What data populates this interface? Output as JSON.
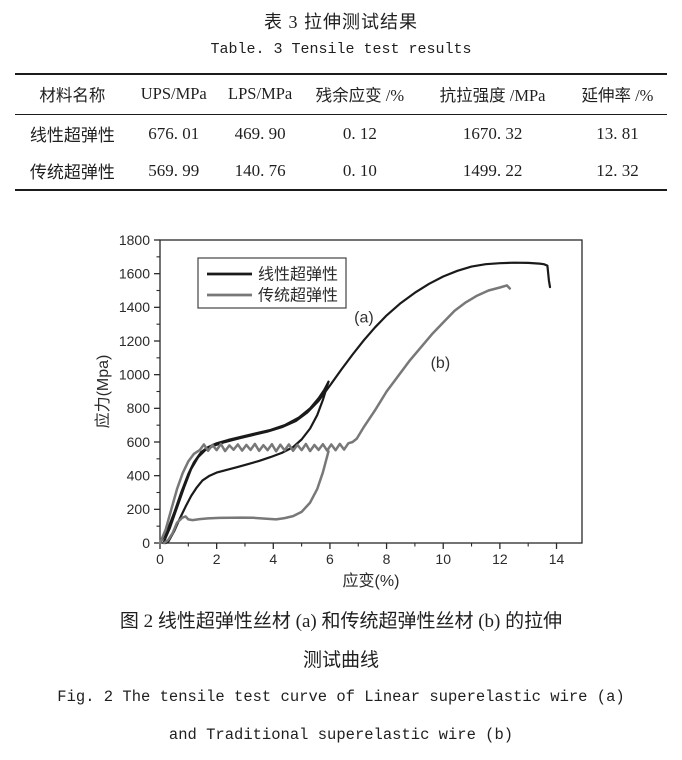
{
  "table_section": {
    "title_zh": "表 3  拉伸测试结果",
    "title_en": "Table. 3  Tensile test results",
    "headers": [
      "材料名称",
      "UPS/MPa",
      "LPS/MPa",
      "残余应变 /%",
      "抗拉强度 /MPa",
      "延伸率 /%"
    ],
    "rows": [
      [
        "线性超弹性",
        "676. 01",
        "469. 90",
        "0. 12",
        "1670. 32",
        "13. 81"
      ],
      [
        "传统超弹性",
        "569. 99",
        "140. 76",
        "0. 10",
        "1499. 22",
        "12. 32"
      ]
    ]
  },
  "figure": {
    "caption_zh_line1": "图 2  线性超弹性丝材 (a) 和传统超弹性丝材 (b) 的拉伸",
    "caption_zh_line2": "测试曲线",
    "caption_en_line1": "Fig. 2  The tensile test curve of Linear superelastic wire (a)",
    "caption_en_line2": "and Traditional superelastic wire (b)"
  },
  "chart_data": {
    "type": "line",
    "title": "",
    "xlabel": "应变(%)",
    "ylabel": "应力(Mpa)",
    "xlim": [
      0,
      14.9
    ],
    "ylim": [
      0,
      1800
    ],
    "xticks": [
      0,
      2,
      4,
      6,
      8,
      10,
      12,
      14
    ],
    "xminor_step": 1,
    "yticks": [
      0,
      200,
      400,
      600,
      800,
      1000,
      1200,
      1400,
      1600,
      1800
    ],
    "yminor_step": 100,
    "grid": false,
    "frame_color": "#2a2a2a",
    "legend": {
      "position": "upper-left-inside",
      "entries": [
        {
          "label": "线性超弹性",
          "color": "#1a1a1a"
        },
        {
          "label": "传统超弹性",
          "color": "#787878"
        }
      ]
    },
    "annotations": [
      {
        "text": "(a)",
        "x": 7.2,
        "y": 1310
      },
      {
        "text": "(b)",
        "x": 9.9,
        "y": 1040
      }
    ],
    "series": [
      {
        "id": "linear-load-cycle",
        "name": "线性超弹性 loading 0-6%",
        "color": "#1a1a1a",
        "width": 2.2,
        "points": [
          [
            0,
            0
          ],
          [
            0.25,
            70
          ],
          [
            0.5,
            180
          ],
          [
            0.75,
            300
          ],
          [
            1.0,
            410
          ],
          [
            1.2,
            480
          ],
          [
            1.45,
            540
          ],
          [
            1.7,
            570
          ],
          [
            2.0,
            592
          ],
          [
            2.4,
            612
          ],
          [
            2.9,
            632
          ],
          [
            3.4,
            652
          ],
          [
            3.9,
            672
          ],
          [
            4.4,
            700
          ],
          [
            4.9,
            745
          ],
          [
            5.3,
            800
          ],
          [
            5.6,
            860
          ],
          [
            5.8,
            910
          ],
          [
            5.95,
            958
          ]
        ]
      },
      {
        "id": "linear-unload",
        "name": "线性超弹性 unloading 6-0%",
        "color": "#1a1a1a",
        "width": 2.2,
        "points": [
          [
            5.95,
            958
          ],
          [
            5.75,
            850
          ],
          [
            5.55,
            760
          ],
          [
            5.3,
            680
          ],
          [
            5.0,
            615
          ],
          [
            4.7,
            570
          ],
          [
            4.3,
            535
          ],
          [
            3.9,
            510
          ],
          [
            3.5,
            488
          ],
          [
            3.1,
            468
          ],
          [
            2.7,
            450
          ],
          [
            2.3,
            432
          ],
          [
            2.0,
            418
          ],
          [
            1.75,
            400
          ],
          [
            1.5,
            372
          ],
          [
            1.3,
            330
          ],
          [
            1.1,
            280
          ],
          [
            0.9,
            215
          ],
          [
            0.7,
            145
          ],
          [
            0.5,
            70
          ],
          [
            0.3,
            10
          ],
          [
            0.2,
            0
          ]
        ]
      },
      {
        "id": "linear-reload-to-failure",
        "name": "线性超弹性 reload to failure",
        "color": "#1a1a1a",
        "width": 2.2,
        "points": [
          [
            0.12,
            0
          ],
          [
            0.35,
            90
          ],
          [
            0.6,
            210
          ],
          [
            0.85,
            330
          ],
          [
            1.1,
            440
          ],
          [
            1.35,
            510
          ],
          [
            1.6,
            552
          ],
          [
            1.9,
            578
          ],
          [
            2.3,
            600
          ],
          [
            2.8,
            622
          ],
          [
            3.3,
            642
          ],
          [
            3.8,
            662
          ],
          [
            4.3,
            688
          ],
          [
            4.8,
            725
          ],
          [
            5.2,
            775
          ],
          [
            5.6,
            845
          ],
          [
            6.0,
            935
          ],
          [
            6.4,
            1030
          ],
          [
            6.8,
            1120
          ],
          [
            7.2,
            1205
          ],
          [
            7.6,
            1282
          ],
          [
            8.0,
            1352
          ],
          [
            8.5,
            1425
          ],
          [
            9.0,
            1487
          ],
          [
            9.5,
            1540
          ],
          [
            10.0,
            1583
          ],
          [
            10.5,
            1617
          ],
          [
            11.0,
            1642
          ],
          [
            11.5,
            1656
          ],
          [
            12.0,
            1662
          ],
          [
            12.5,
            1665
          ],
          [
            13.0,
            1664
          ],
          [
            13.4,
            1660
          ],
          [
            13.55,
            1656
          ],
          [
            13.68,
            1648
          ],
          [
            13.73,
            1560
          ],
          [
            13.77,
            1520
          ]
        ]
      },
      {
        "id": "traditional-load-to-failure",
        "name": "传统超弹性 load / serrated plateau / failure",
        "color": "#787878",
        "width": 2.5,
        "points": [
          [
            0,
            0
          ],
          [
            0.2,
            80
          ],
          [
            0.4,
            200
          ],
          [
            0.6,
            320
          ],
          [
            0.8,
            415
          ],
          [
            1.0,
            485
          ],
          [
            1.2,
            530
          ],
          [
            1.4,
            552
          ],
          [
            1.55,
            585
          ],
          [
            1.7,
            548
          ],
          [
            1.85,
            582
          ],
          [
            2.0,
            552
          ],
          [
            2.15,
            588
          ],
          [
            2.3,
            546
          ],
          [
            2.45,
            580
          ],
          [
            2.6,
            554
          ],
          [
            2.75,
            586
          ],
          [
            2.9,
            549
          ],
          [
            3.05,
            583
          ],
          [
            3.2,
            553
          ],
          [
            3.35,
            589
          ],
          [
            3.5,
            547
          ],
          [
            3.65,
            581
          ],
          [
            3.8,
            551
          ],
          [
            3.95,
            587
          ],
          [
            4.1,
            545
          ],
          [
            4.25,
            584
          ],
          [
            4.4,
            550
          ],
          [
            4.55,
            586
          ],
          [
            4.7,
            548
          ],
          [
            4.85,
            583
          ],
          [
            5.0,
            552
          ],
          [
            5.15,
            588
          ],
          [
            5.3,
            546
          ],
          [
            5.45,
            582
          ],
          [
            5.6,
            553
          ],
          [
            5.75,
            587
          ],
          [
            5.9,
            549
          ],
          [
            6.05,
            585
          ],
          [
            6.2,
            551
          ],
          [
            6.35,
            589
          ],
          [
            6.5,
            555
          ],
          [
            6.65,
            592
          ],
          [
            6.8,
            600
          ],
          [
            6.95,
            620
          ],
          [
            7.2,
            690
          ],
          [
            7.6,
            790
          ],
          [
            8.0,
            900
          ],
          [
            8.4,
            990
          ],
          [
            8.8,
            1080
          ],
          [
            9.2,
            1160
          ],
          [
            9.6,
            1240
          ],
          [
            10.0,
            1310
          ],
          [
            10.4,
            1380
          ],
          [
            10.8,
            1430
          ],
          [
            11.2,
            1470
          ],
          [
            11.6,
            1500
          ],
          [
            12.0,
            1518
          ],
          [
            12.25,
            1530
          ],
          [
            12.35,
            1512
          ]
        ]
      },
      {
        "id": "traditional-unload",
        "name": "传统超弹性 unloading 6-0%",
        "color": "#787878",
        "width": 2.5,
        "points": [
          [
            5.95,
            545
          ],
          [
            5.75,
            420
          ],
          [
            5.55,
            320
          ],
          [
            5.3,
            240
          ],
          [
            5.0,
            185
          ],
          [
            4.7,
            160
          ],
          [
            4.4,
            148
          ],
          [
            4.1,
            140
          ],
          [
            3.7,
            145
          ],
          [
            3.3,
            150
          ],
          [
            2.9,
            151
          ],
          [
            2.5,
            150
          ],
          [
            2.1,
            149
          ],
          [
            1.7,
            146
          ],
          [
            1.4,
            142
          ],
          [
            1.15,
            136
          ],
          [
            1.0,
            140
          ],
          [
            0.9,
            158
          ],
          [
            0.78,
            150
          ],
          [
            0.6,
            120
          ],
          [
            0.45,
            60
          ],
          [
            0.3,
            20
          ],
          [
            0.15,
            0
          ]
        ]
      }
    ]
  }
}
